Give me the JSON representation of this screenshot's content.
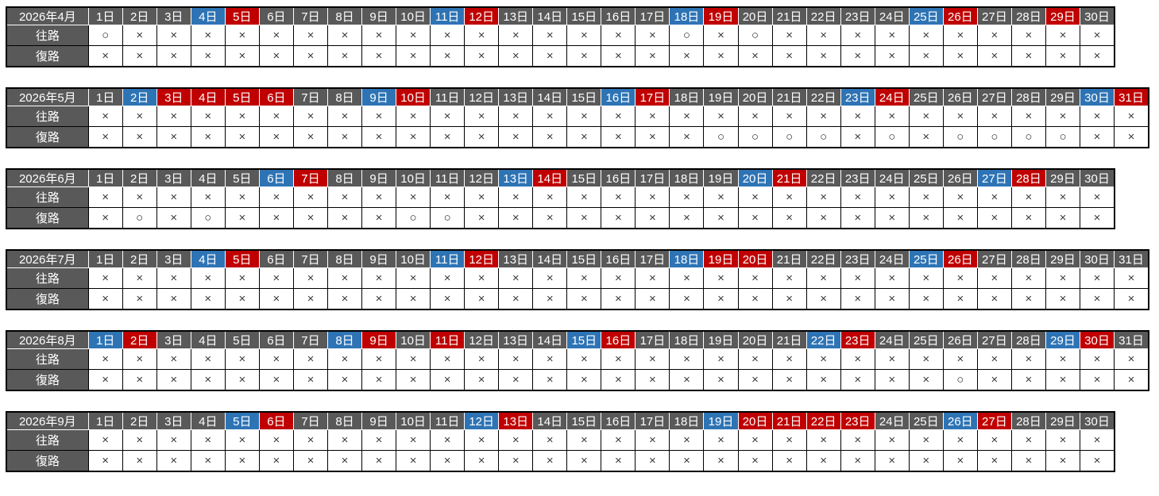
{
  "day_suffix": "日",
  "row_labels": {
    "outbound": "往路",
    "return": "復路"
  },
  "symbols": {
    "available": "○",
    "unavailable": "×"
  },
  "colors": {
    "header_gray": "#595959",
    "saturday_blue": "#2E74B5",
    "holiday_red": "#C00000",
    "grid_black": "#000000",
    "cell_white": "#ffffff",
    "mark_gray": "#3a3a3a"
  },
  "months": [
    {
      "label": "2026年4月",
      "days": 30,
      "blue_days": [
        4,
        11,
        18,
        25
      ],
      "red_days": [
        5,
        12,
        19,
        26,
        29
      ],
      "outbound_available_days": [
        1,
        18,
        20
      ],
      "return_available_days": []
    },
    {
      "label": "2026年5月",
      "days": 31,
      "blue_days": [
        2,
        9,
        16,
        23,
        30
      ],
      "red_days": [
        3,
        4,
        5,
        6,
        10,
        17,
        24,
        31
      ],
      "outbound_available_days": [],
      "return_available_days": [
        19,
        20,
        21,
        22,
        24,
        26,
        27,
        28,
        29
      ]
    },
    {
      "label": "2026年6月",
      "days": 30,
      "blue_days": [
        6,
        13,
        20,
        27
      ],
      "red_days": [
        7,
        14,
        21,
        28
      ],
      "outbound_available_days": [],
      "return_available_days": [
        2,
        4,
        10,
        11
      ]
    },
    {
      "label": "2026年7月",
      "days": 31,
      "blue_days": [
        4,
        11,
        18,
        25
      ],
      "red_days": [
        5,
        12,
        19,
        20,
        26
      ],
      "outbound_available_days": [],
      "return_available_days": []
    },
    {
      "label": "2026年8月",
      "days": 31,
      "blue_days": [
        1,
        8,
        15,
        22,
        29
      ],
      "red_days": [
        2,
        9,
        11,
        16,
        23,
        30
      ],
      "outbound_available_days": [],
      "return_available_days": [
        26
      ]
    },
    {
      "label": "2026年9月",
      "days": 30,
      "blue_days": [
        5,
        12,
        19,
        26
      ],
      "red_days": [
        6,
        13,
        20,
        21,
        22,
        23,
        27
      ],
      "outbound_available_days": [],
      "return_available_days": []
    }
  ]
}
